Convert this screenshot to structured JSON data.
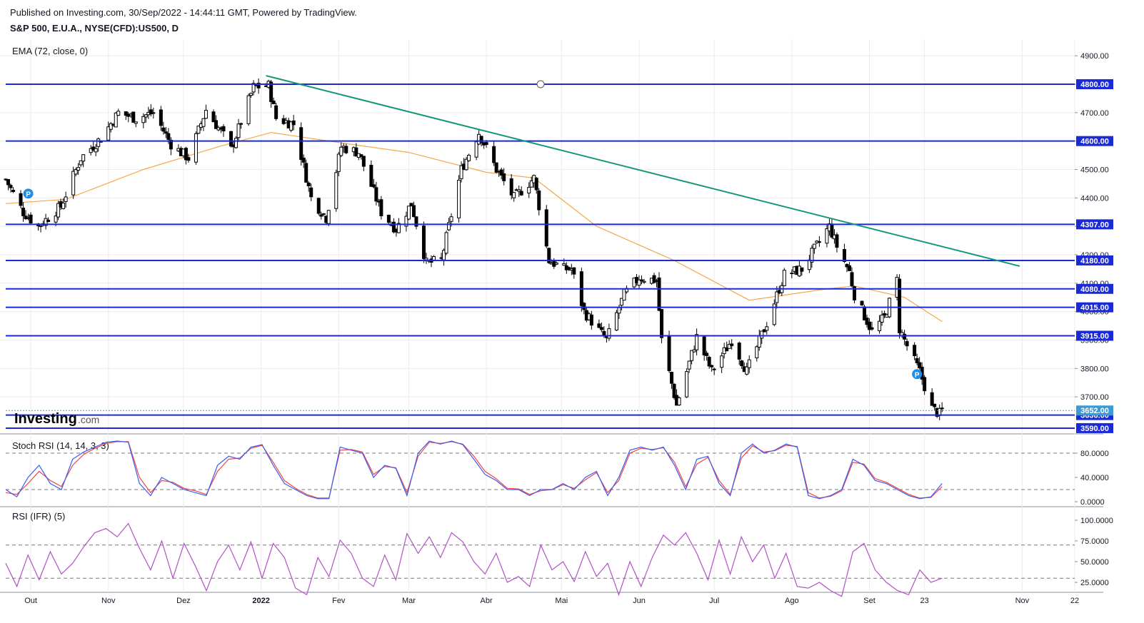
{
  "header": {
    "published": "Published on Investing.com, 30/Sep/2022 - 14:44:11 GMT, Powered by TradingView.",
    "symbol": "S&P 500, E.U.A., NYSE(CFD):US500, D"
  },
  "colors": {
    "level_line": "#1a2ad6",
    "trendline": "#14967a",
    "ema": "#f4a74b",
    "stoch_k": "#3b5cf0",
    "stoch_d": "#f04646",
    "rsi": "#b151c6",
    "candle_up": "#ffffff",
    "candle_down": "#000000",
    "label_bg": "#1a2ad6",
    "last_price_bg": "#3c9bd4",
    "marker": "#1e8fe8"
  },
  "icons": [
    "p-marker-icon",
    "investing-logo"
  ],
  "logo": {
    "main": "Investing",
    "suffix": ".com"
  },
  "chart_data": [
    {
      "type": "candlestick",
      "panel": "price",
      "indicator_label": "EMA (72, close, 0)",
      "ylim": [
        3560,
        4960
      ],
      "yticks": [
        "4900.00",
        "4800.00",
        "4700.00",
        "4600.00",
        "4500.00",
        "4400.00",
        "4300.00",
        "4200.00",
        "4100.00",
        "4000.00",
        "3900.00",
        "3800.00",
        "3700.00"
      ],
      "xticks": [
        "Out",
        "Nov",
        "Dez",
        "2022",
        "Fev",
        "Mar",
        "Abr",
        "Mai",
        "Jun",
        "Jul",
        "Ago",
        "Set",
        "23",
        "Nov",
        "22"
      ],
      "x_range": [
        "2021-09-21",
        "2022-11-22"
      ],
      "levels": [
        {
          "value": 4800,
          "label": "4800.00"
        },
        {
          "value": 4600,
          "label": "4600.00"
        },
        {
          "value": 4307,
          "label": "4307.00"
        },
        {
          "value": 4180,
          "label": "4180.00"
        },
        {
          "value": 4080,
          "label": "4080.00"
        },
        {
          "value": 4015,
          "label": "4015.00"
        },
        {
          "value": 3915,
          "label": "3915.00"
        },
        {
          "value": 3636,
          "label": "3636.00"
        },
        {
          "value": 3590,
          "label": "3590.00"
        }
      ],
      "last_price": {
        "value": 3652,
        "label": "3652.00"
      },
      "trendline": [
        {
          "x": "2022-01-03",
          "y": 4830
        },
        {
          "x": "2022-10-31",
          "y": 4160
        }
      ],
      "markers": [
        {
          "x": "2021-09-30",
          "y": 4415,
          "label": "P"
        },
        {
          "x": "2022-09-20",
          "y": 3780,
          "label": "P"
        }
      ],
      "ohlc_anchors": [
        {
          "x": "2021-09-21",
          "close": 4465
        },
        {
          "x": "2021-09-28",
          "close": 4350
        },
        {
          "x": "2021-10-04",
          "close": 4300
        },
        {
          "x": "2021-10-13",
          "close": 4370
        },
        {
          "x": "2021-10-21",
          "close": 4540
        },
        {
          "x": "2021-10-29",
          "close": 4610
        },
        {
          "x": "2021-11-05",
          "close": 4700
        },
        {
          "x": "2021-11-12",
          "close": 4680
        },
        {
          "x": "2021-11-19",
          "close": 4700
        },
        {
          "x": "2021-11-26",
          "close": 4590
        },
        {
          "x": "2021-11-30",
          "close": 4560
        },
        {
          "x": "2021-12-03",
          "close": 4540
        },
        {
          "x": "2021-12-10",
          "close": 4710
        },
        {
          "x": "2021-12-17",
          "close": 4620
        },
        {
          "x": "2021-12-20",
          "close": 4570
        },
        {
          "x": "2021-12-29",
          "close": 4790
        },
        {
          "x": "2022-01-04",
          "close": 4795
        },
        {
          "x": "2022-01-07",
          "close": 4680
        },
        {
          "x": "2022-01-14",
          "close": 4660
        },
        {
          "x": "2022-01-21",
          "close": 4400
        },
        {
          "x": "2022-01-27",
          "close": 4330
        },
        {
          "x": "2022-02-02",
          "close": 4580
        },
        {
          "x": "2022-02-09",
          "close": 4560
        },
        {
          "x": "2022-02-18",
          "close": 4350
        },
        {
          "x": "2022-02-24",
          "close": 4290
        },
        {
          "x": "2022-03-02",
          "close": 4380
        },
        {
          "x": "2022-03-08",
          "close": 4170
        },
        {
          "x": "2022-03-14",
          "close": 4180
        },
        {
          "x": "2022-03-22",
          "close": 4500
        },
        {
          "x": "2022-03-29",
          "close": 4630
        },
        {
          "x": "2022-04-05",
          "close": 4500
        },
        {
          "x": "2022-04-12",
          "close": 4400
        },
        {
          "x": "2022-04-20",
          "close": 4470
        },
        {
          "x": "2022-04-26",
          "close": 4180
        },
        {
          "x": "2022-05-02",
          "close": 4150
        },
        {
          "x": "2022-05-05",
          "close": 4150
        },
        {
          "x": "2022-05-10",
          "close": 4000
        },
        {
          "x": "2022-05-19",
          "close": 3900
        },
        {
          "x": "2022-05-26",
          "close": 4060
        },
        {
          "x": "2022-06-01",
          "close": 4120
        },
        {
          "x": "2022-06-08",
          "close": 4110
        },
        {
          "x": "2022-06-10",
          "close": 3900
        },
        {
          "x": "2022-06-16",
          "close": 3670
        },
        {
          "x": "2022-06-24",
          "close": 3910
        },
        {
          "x": "2022-06-30",
          "close": 3790
        },
        {
          "x": "2022-07-08",
          "close": 3900
        },
        {
          "x": "2022-07-14",
          "close": 3790
        },
        {
          "x": "2022-07-22",
          "close": 3960
        },
        {
          "x": "2022-07-29",
          "close": 4130
        },
        {
          "x": "2022-08-05",
          "close": 4150
        },
        {
          "x": "2022-08-16",
          "close": 4300
        },
        {
          "x": "2022-08-19",
          "close": 4230
        },
        {
          "x": "2022-08-24",
          "close": 4140
        },
        {
          "x": "2022-08-26",
          "close": 4060
        },
        {
          "x": "2022-09-02",
          "close": 3930
        },
        {
          "x": "2022-09-07",
          "close": 3980
        },
        {
          "x": "2022-09-12",
          "close": 4110
        },
        {
          "x": "2022-09-13",
          "close": 3940
        },
        {
          "x": "2022-09-16",
          "close": 3880
        },
        {
          "x": "2022-09-21",
          "close": 3790
        },
        {
          "x": "2022-09-26",
          "close": 3660
        },
        {
          "x": "2022-09-29",
          "close": 3640
        },
        {
          "x": "2022-09-30",
          "close": 3652
        }
      ],
      "ema_anchors": [
        {
          "x": "2021-09-21",
          "y": 4380
        },
        {
          "x": "2021-10-15",
          "y": 4395
        },
        {
          "x": "2021-11-15",
          "y": 4500
        },
        {
          "x": "2021-12-15",
          "y": 4580
        },
        {
          "x": "2022-01-05",
          "y": 4630
        },
        {
          "x": "2022-02-01",
          "y": 4595
        },
        {
          "x": "2022-03-01",
          "y": 4560
        },
        {
          "x": "2022-04-01",
          "y": 4490
        },
        {
          "x": "2022-04-20",
          "y": 4470
        },
        {
          "x": "2022-05-15",
          "y": 4300
        },
        {
          "x": "2022-06-15",
          "y": 4180
        },
        {
          "x": "2022-07-15",
          "y": 4040
        },
        {
          "x": "2022-08-15",
          "y": 4080
        },
        {
          "x": "2022-08-26",
          "y": 4090
        },
        {
          "x": "2022-09-15",
          "y": 4050
        },
        {
          "x": "2022-09-30",
          "y": 3965
        }
      ]
    },
    {
      "type": "line",
      "panel": "stoch",
      "indicator_label": "Stoch RSI (14, 14, 3, 3)",
      "ylim": [
        0,
        100
      ],
      "yticks": [
        "80.0000",
        "40.0000",
        "0.0000"
      ],
      "reference_lines": [
        80,
        20
      ],
      "series": [
        {
          "key": "k",
          "values": [
            20,
            8,
            40,
            60,
            30,
            20,
            70,
            82,
            90,
            98,
            100,
            98,
            30,
            10,
            40,
            30,
            20,
            15,
            10,
            60,
            75,
            70,
            90,
            94,
            60,
            30,
            20,
            10,
            5,
            5,
            90,
            85,
            80,
            40,
            60,
            55,
            10,
            80,
            100,
            95,
            100,
            94,
            70,
            45,
            35,
            20,
            20,
            10,
            20,
            20,
            30,
            20,
            40,
            50,
            10,
            40,
            85,
            90,
            85,
            90,
            60,
            20,
            70,
            75,
            30,
            10,
            80,
            95,
            80,
            85,
            95,
            90,
            10,
            5,
            10,
            20,
            70,
            60,
            35,
            30,
            20,
            10,
            5,
            8,
            30
          ]
        },
        {
          "key": "d",
          "values": [
            15,
            12,
            30,
            50,
            35,
            25,
            60,
            78,
            88,
            96,
            99,
            99,
            40,
            15,
            35,
            32,
            22,
            18,
            12,
            50,
            70,
            72,
            88,
            93,
            65,
            35,
            22,
            12,
            6,
            6,
            85,
            86,
            82,
            45,
            58,
            56,
            15,
            75,
            98,
            96,
            99,
            95,
            75,
            50,
            38,
            22,
            21,
            12,
            18,
            20,
            28,
            22,
            36,
            48,
            15,
            35,
            80,
            88,
            86,
            89,
            65,
            25,
            62,
            73,
            35,
            12,
            72,
            92,
            82,
            84,
            93,
            91,
            15,
            6,
            9,
            18,
            65,
            62,
            38,
            32,
            22,
            12,
            6,
            7,
            25
          ]
        }
      ]
    },
    {
      "type": "line",
      "panel": "rsi",
      "indicator_label": "RSI (IFR) (5)",
      "ylim": [
        5,
        105
      ],
      "yticks": [
        "100.0000",
        "75.0000",
        "50.0000",
        "25.0000"
      ],
      "reference_lines": [
        70,
        30
      ],
      "series": [
        {
          "key": "rsi",
          "values": [
            48,
            20,
            58,
            28,
            62,
            35,
            48,
            68,
            85,
            90,
            80,
            96,
            66,
            40,
            75,
            30,
            72,
            45,
            15,
            50,
            70,
            40,
            74,
            30,
            72,
            55,
            18,
            10,
            55,
            32,
            76,
            60,
            30,
            20,
            58,
            28,
            84,
            60,
            80,
            55,
            85,
            74,
            50,
            35,
            60,
            25,
            32,
            20,
            70,
            40,
            50,
            26,
            62,
            32,
            48,
            10,
            50,
            20,
            55,
            82,
            70,
            85,
            60,
            28,
            76,
            35,
            80,
            50,
            70,
            30,
            60,
            20,
            18,
            25,
            15,
            8,
            62,
            72,
            40,
            25,
            15,
            10,
            40,
            25,
            30
          ]
        }
      ]
    }
  ]
}
